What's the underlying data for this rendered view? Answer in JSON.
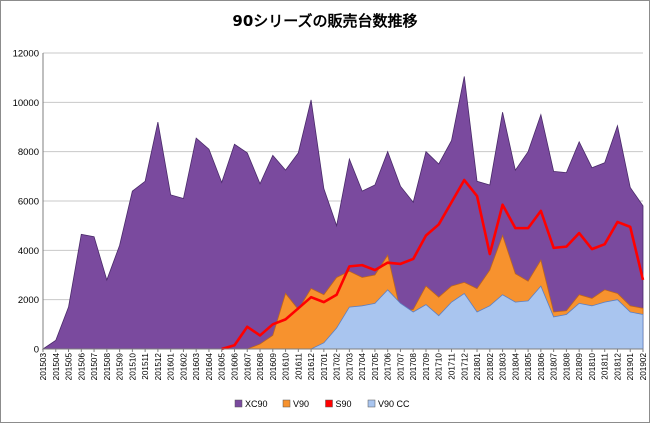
{
  "chart_data": {
    "type": "area",
    "title": "90シリーズの販売台数推移",
    "xlabel": "",
    "ylabel": "",
    "ylim": [
      0,
      12000
    ],
    "yticks": [
      0,
      2000,
      4000,
      6000,
      8000,
      10000,
      12000
    ],
    "grid": true,
    "legend_position": "bottom",
    "categories": [
      "201503",
      "201504",
      "201505",
      "201506",
      "201507",
      "201508",
      "201509",
      "201510",
      "201511",
      "201512",
      "201601",
      "201602",
      "201603",
      "201604",
      "201605",
      "201606",
      "201607",
      "201608",
      "201609",
      "201610",
      "201611",
      "201612",
      "201701",
      "201702",
      "201703",
      "201704",
      "201705",
      "201706",
      "201707",
      "201708",
      "201709",
      "201710",
      "201711",
      "201712",
      "201801",
      "201802",
      "201803",
      "201804",
      "201805",
      "201806",
      "201807",
      "201808",
      "201809",
      "201810",
      "201811",
      "201812",
      "201901",
      "201902"
    ],
    "series": [
      {
        "name": "XC90",
        "kind": "area",
        "color": "#7a4a9e",
        "edge": "#4a2a6a",
        "values": [
          0,
          350,
          1700,
          4650,
          4550,
          2800,
          4200,
          6400,
          6800,
          9200,
          6250,
          6100,
          8550,
          8100,
          6750,
          8300,
          7950,
          6700,
          7850,
          7250,
          7950,
          10100,
          6500,
          5000,
          7700,
          6400,
          6650,
          8000,
          6600,
          5950,
          8000,
          7500,
          8450,
          11050,
          6800,
          6650,
          9600,
          7250,
          8000,
          9500,
          7200,
          7150,
          8400,
          7350,
          7550,
          9050,
          6550,
          5800
        ]
      },
      {
        "name": "V90",
        "kind": "area",
        "color": "#f7922e",
        "edge": "#c0661a",
        "values": [
          0,
          0,
          0,
          0,
          0,
          0,
          0,
          0,
          0,
          0,
          0,
          0,
          0,
          0,
          0,
          0,
          0,
          200,
          550,
          2250,
          1600,
          2450,
          2200,
          2900,
          3150,
          2900,
          3000,
          3800,
          1550,
          1600,
          2550,
          2100,
          2550,
          2700,
          2450,
          3200,
          4600,
          3050,
          2750,
          3600,
          1500,
          1550,
          2200,
          2050,
          2400,
          2250,
          1750,
          1650
        ]
      },
      {
        "name": "S90",
        "kind": "line",
        "color": "#ff0000",
        "edge": "#ff0000",
        "values": [
          null,
          null,
          null,
          null,
          null,
          null,
          null,
          null,
          null,
          null,
          null,
          null,
          null,
          null,
          0,
          150,
          900,
          550,
          1000,
          1200,
          1650,
          2100,
          1900,
          2200,
          3350,
          3400,
          3200,
          3500,
          3450,
          3650,
          4600,
          5050,
          5950,
          6850,
          6200,
          3850,
          5850,
          4900,
          4900,
          5600,
          4100,
          4150,
          4700,
          4050,
          4250,
          5150,
          4950,
          2800
        ]
      },
      {
        "name": "V90 CC",
        "kind": "area",
        "color": "#a9c5ef",
        "edge": "#5b7fc4",
        "values": [
          0,
          0,
          0,
          0,
          0,
          0,
          0,
          0,
          0,
          0,
          0,
          0,
          0,
          0,
          0,
          0,
          0,
          0,
          0,
          0,
          0,
          0,
          250,
          850,
          1700,
          1750,
          1850,
          2400,
          1850,
          1500,
          1800,
          1350,
          1900,
          2250,
          1500,
          1750,
          2200,
          1900,
          1950,
          2550,
          1300,
          1400,
          1850,
          1750,
          1900,
          2000,
          1500,
          1400
        ]
      }
    ],
    "legend": [
      {
        "name": "XC90",
        "color": "#7a4a9e"
      },
      {
        "name": "V90",
        "color": "#f7922e"
      },
      {
        "name": "S90",
        "color": "#ff0000"
      },
      {
        "name": "V90 CC",
        "color": "#a9c5ef"
      }
    ]
  }
}
